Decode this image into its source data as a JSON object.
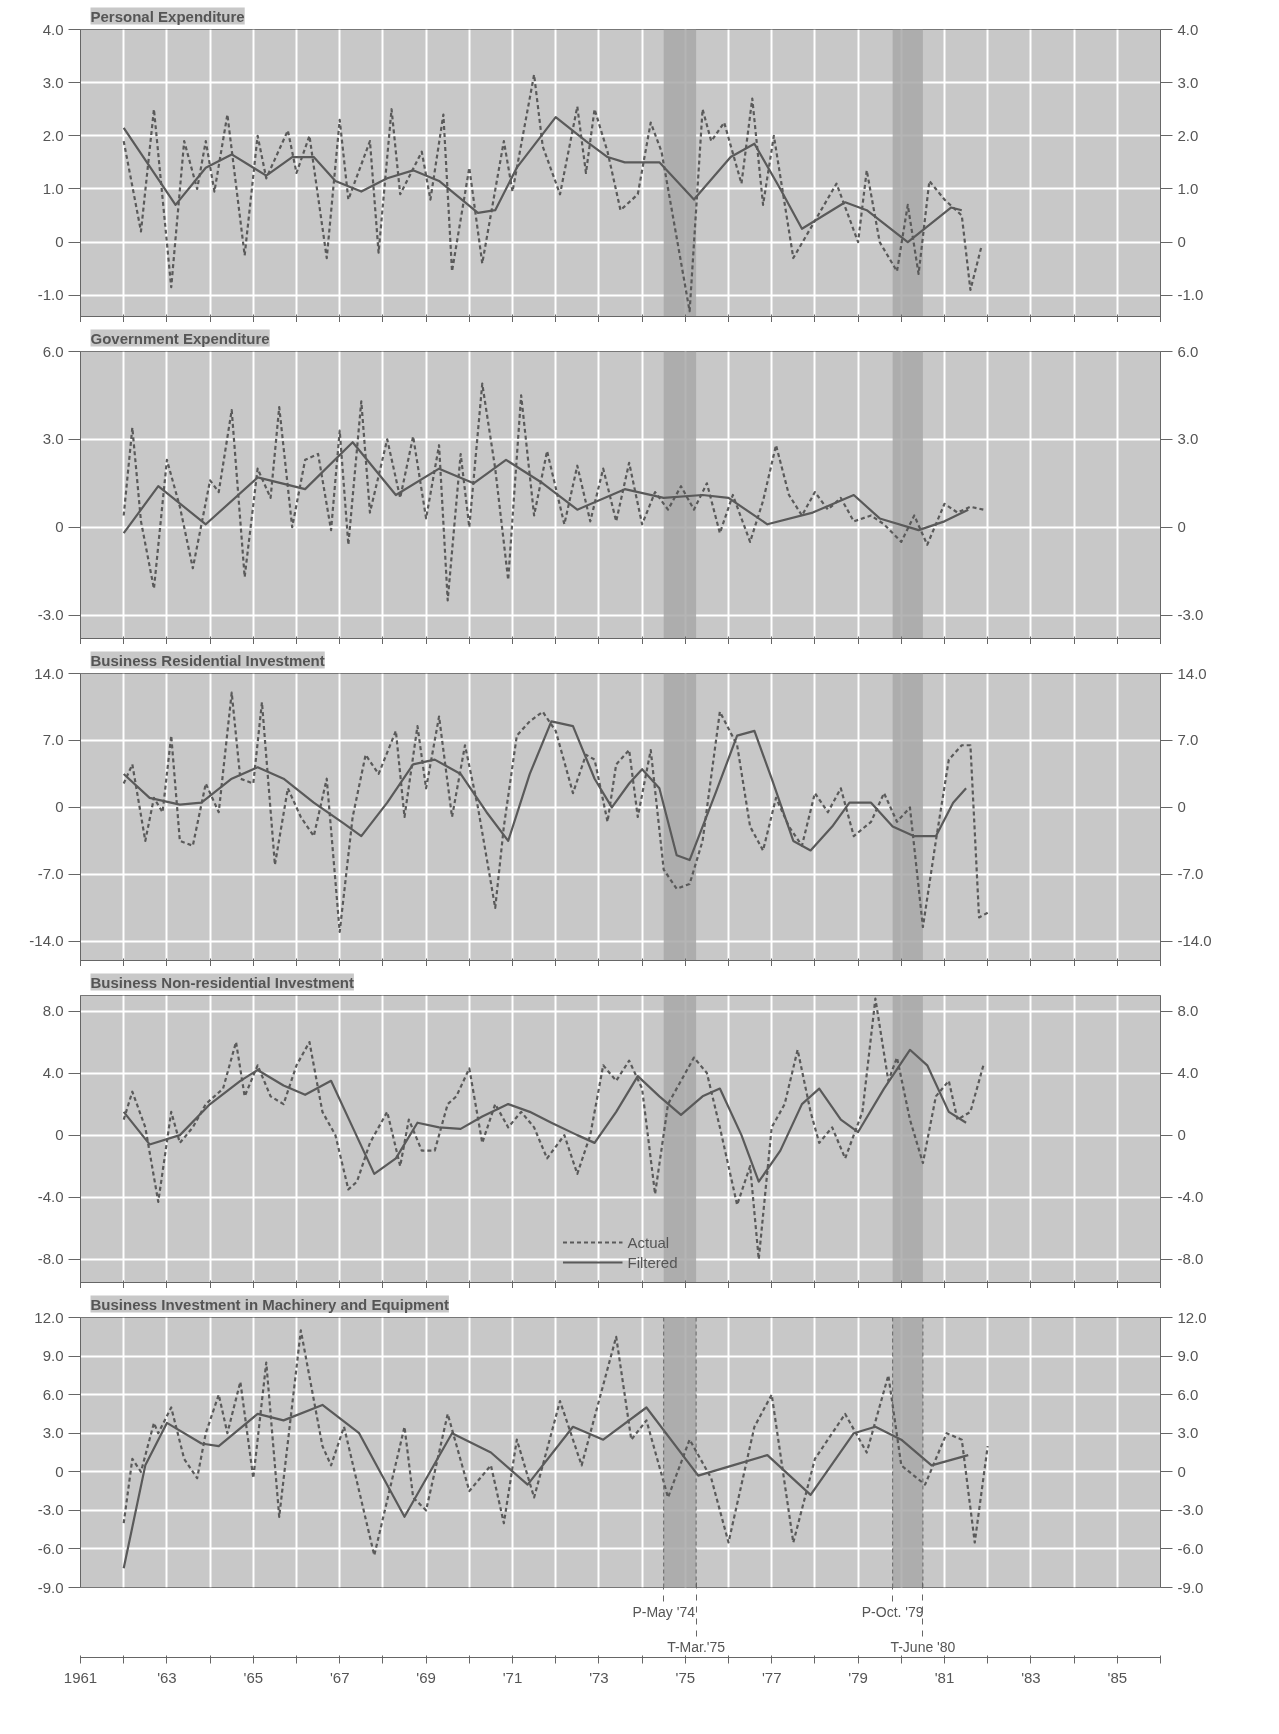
{
  "chart_data": [
    {
      "type": "line",
      "title": "Personal Expenditure",
      "tick_labels": "y",
      "grid": true,
      "xlim": [
        1961,
        1986
      ],
      "xticks": [
        {
          "value": 1961,
          "label": null
        },
        {
          "value": 1962,
          "label": null
        },
        {
          "value": 1963,
          "label": null
        },
        {
          "value": 1964,
          "label": null
        },
        {
          "value": 1965,
          "label": null
        },
        {
          "value": 1966,
          "label": null
        },
        {
          "value": 1967,
          "label": null
        },
        {
          "value": 1968,
          "label": null
        },
        {
          "value": 1969,
          "label": null
        },
        {
          "value": 1970,
          "label": null
        },
        {
          "value": 1971,
          "label": null
        },
        {
          "value": 1972,
          "label": null
        },
        {
          "value": 1973,
          "label": null
        },
        {
          "value": 1974,
          "label": null
        },
        {
          "value": 1975,
          "label": null
        },
        {
          "value": 1976,
          "label": null
        },
        {
          "value": 1977,
          "label": null
        },
        {
          "value": 1978,
          "label": null
        },
        {
          "value": 1979,
          "label": null
        },
        {
          "value": 1980,
          "label": null
        },
        {
          "value": 1981,
          "label": null
        },
        {
          "value": 1982,
          "label": null
        },
        {
          "value": 1983,
          "label": null
        },
        {
          "value": 1984,
          "label": null
        },
        {
          "value": 1985,
          "label": null
        },
        {
          "value": 1986,
          "label": null
        }
      ],
      "ylim": [
        -1.4,
        4.0
      ],
      "yticks": [
        {
          "value": -1,
          "label": "-1.0"
        },
        0,
        {
          "value": 1,
          "label": "1.0"
        },
        {
          "value": 2,
          "label": "2.0"
        },
        {
          "value": 3,
          "label": "3.0"
        },
        {
          "value": 4,
          "label": "4.0"
        }
      ],
      "y2lim": [
        -1.4,
        4.0
      ],
      "y2ticks": [
        {
          "value": -1,
          "label": "-1.0"
        },
        0,
        {
          "value": 1,
          "label": "1.0"
        },
        {
          "value": 2,
          "label": "2.0"
        },
        {
          "value": 3,
          "label": "3.0"
        },
        {
          "value": 4,
          "label": "4.0"
        }
      ],
      "bands": [
        {
          "axis": "x",
          "from": 1974.5,
          "to": 1975.25,
          "color": "#a8a8a8"
        },
        {
          "axis": "x",
          "from": 1979.8,
          "to": 1980.5,
          "color": "#a8a8a8"
        }
      ],
      "series": [
        {
          "color": "#5a5a5a",
          "line_style": "dashed",
          "x": [
            1962.0,
            1962.4,
            1962.7,
            1963.1,
            1963.4,
            1963.7,
            1963.9,
            1964.1,
            1964.4,
            1964.8,
            1965.1,
            1965.3,
            1965.8,
            1966.0,
            1966.3,
            1966.7,
            1967.0,
            1967.2,
            1967.7,
            1967.9,
            1968.2,
            1968.4,
            1968.9,
            1969.1,
            1969.4,
            1969.6,
            1970.0,
            1970.3,
            1970.8,
            1971.0,
            1971.5,
            1971.7,
            1972.1,
            1972.5,
            1972.7,
            1972.9,
            1973.2,
            1973.5,
            1973.9,
            1974.2,
            1974.45,
            1975.1,
            1975.4,
            1975.6,
            1975.9,
            1976.3,
            1976.55,
            1976.8,
            1977.05,
            1977.5,
            1978.5,
            1979.0,
            1979.2,
            1979.5,
            1979.9,
            1980.15,
            1980.4,
            1980.65,
            1981.0,
            1981.4,
            1981.6,
            1981.85
          ],
          "values": [
            1.9,
            0.2,
            2.5,
            -0.85,
            1.9,
            1.0,
            1.9,
            0.95,
            2.4,
            -0.25,
            2.0,
            1.2,
            2.1,
            1.3,
            2.0,
            -0.3,
            2.3,
            0.8,
            1.9,
            -0.2,
            2.5,
            0.9,
            1.7,
            0.8,
            2.4,
            -0.55,
            1.4,
            -0.4,
            1.9,
            0.95,
            3.15,
            1.8,
            0.9,
            2.55,
            1.3,
            2.5,
            1.7,
            0.6,
            0.9,
            2.25,
            1.7,
            -1.3,
            2.5,
            1.9,
            2.25,
            1.1,
            2.7,
            0.7,
            2.0,
            -0.3,
            1.1,
            0.0,
            1.35,
            0.0,
            -0.55,
            0.7,
            -0.6,
            1.15,
            0.8,
            0.5,
            -0.9,
            -0.1
          ]
        },
        {
          "color": "#5a5a5a",
          "line_style": "solid",
          "x": [
            1962.0,
            1963.2,
            1963.9,
            1964.5,
            1964.9,
            1965.3,
            1965.9,
            1966.4,
            1966.9,
            1967.5,
            1968.1,
            1968.7,
            1969.3,
            1970.2,
            1970.6,
            1971.1,
            1972.0,
            1972.7,
            1973.2,
            1973.6,
            1974.4,
            1975.2,
            1976.05,
            1976.6,
            1977.2,
            1977.7,
            1978.7,
            1979.2,
            1980.15,
            1981.15,
            1981.4
          ],
          "values": [
            2.15,
            0.7,
            1.4,
            1.65,
            1.45,
            1.25,
            1.6,
            1.6,
            1.15,
            0.95,
            1.2,
            1.35,
            1.15,
            0.55,
            0.6,
            1.4,
            2.35,
            1.9,
            1.6,
            1.5,
            1.5,
            0.8,
            1.6,
            1.85,
            1.0,
            0.25,
            0.75,
            0.6,
            0.0,
            0.65,
            0.6
          ]
        }
      ]
    },
    {
      "type": "line",
      "title": "Government Expenditure",
      "tick_labels": "y",
      "grid": true,
      "xlim": [
        1961,
        1986
      ],
      "xticks": [
        {
          "value": 1961,
          "label": null
        },
        {
          "value": 1962,
          "label": null
        },
        {
          "value": 1963,
          "label": null
        },
        {
          "value": 1964,
          "label": null
        },
        {
          "value": 1965,
          "label": null
        },
        {
          "value": 1966,
          "label": null
        },
        {
          "value": 1967,
          "label": null
        },
        {
          "value": 1968,
          "label": null
        },
        {
          "value": 1969,
          "label": null
        },
        {
          "value": 1970,
          "label": null
        },
        {
          "value": 1971,
          "label": null
        },
        {
          "value": 1972,
          "label": null
        },
        {
          "value": 1973,
          "label": null
        },
        {
          "value": 1974,
          "label": null
        },
        {
          "value": 1975,
          "label": null
        },
        {
          "value": 1976,
          "label": null
        },
        {
          "value": 1977,
          "label": null
        },
        {
          "value": 1978,
          "label": null
        },
        {
          "value": 1979,
          "label": null
        },
        {
          "value": 1980,
          "label": null
        },
        {
          "value": 1981,
          "label": null
        },
        {
          "value": 1982,
          "label": null
        },
        {
          "value": 1983,
          "label": null
        },
        {
          "value": 1984,
          "label": null
        },
        {
          "value": 1985,
          "label": null
        },
        {
          "value": 1986,
          "label": null
        }
      ],
      "ylim": [
        -3.8,
        6.0
      ],
      "yticks": [
        {
          "value": -3,
          "label": "-3.0"
        },
        0,
        {
          "value": 3,
          "label": "3.0"
        },
        {
          "value": 6,
          "label": "6.0"
        }
      ],
      "y2lim": [
        -3.8,
        6.0
      ],
      "y2ticks": [
        {
          "value": -3,
          "label": "-3.0"
        },
        0,
        {
          "value": 3,
          "label": "3.0"
        },
        {
          "value": 6,
          "label": "6.0"
        }
      ],
      "bands": [
        {
          "axis": "x",
          "from": 1974.5,
          "to": 1975.25,
          "color": "#a8a8a8"
        },
        {
          "axis": "x",
          "from": 1979.8,
          "to": 1980.5,
          "color": "#a8a8a8"
        }
      ],
      "series": [
        {
          "color": "#5a5a5a",
          "line_style": "dashed",
          "x": [
            1962.0,
            1962.2,
            1962.4,
            1962.7,
            1963.0,
            1963.3,
            1963.6,
            1964.0,
            1964.2,
            1964.5,
            1964.8,
            1965.1,
            1965.4,
            1965.6,
            1965.9,
            1966.2,
            1966.5,
            1966.8,
            1967.0,
            1967.2,
            1967.5,
            1967.7,
            1968.1,
            1968.4,
            1968.7,
            1969.0,
            1969.3,
            1969.5,
            1969.8,
            1970.0,
            1970.3,
            1970.6,
            1970.9,
            1971.2,
            1971.5,
            1971.8,
            1972.2,
            1972.5,
            1972.8,
            1973.1,
            1973.4,
            1973.7,
            1974.0,
            1974.3,
            1974.6,
            1974.9,
            1975.2,
            1975.5,
            1975.8,
            1976.1,
            1976.5,
            1976.8,
            1977.1,
            1977.4,
            1977.7,
            1978.0,
            1978.3,
            1978.6,
            1978.9,
            1979.3,
            1979.6,
            1980.0,
            1980.3,
            1980.6,
            1981.0,
            1981.3,
            1981.6,
            1981.9
          ],
          "values": [
            0.4,
            3.4,
            0.2,
            -2.1,
            2.3,
            0.7,
            -1.4,
            1.6,
            1.2,
            4.0,
            -1.7,
            2.0,
            1.0,
            4.1,
            0.0,
            2.3,
            2.5,
            -0.1,
            3.3,
            -0.6,
            4.3,
            0.5,
            3.0,
            1.0,
            3.1,
            0.3,
            2.8,
            -2.5,
            2.5,
            0.0,
            4.9,
            2.0,
            -1.8,
            4.5,
            0.4,
            2.6,
            0.1,
            2.1,
            0.2,
            2.0,
            0.2,
            2.2,
            0.1,
            1.2,
            0.6,
            1.4,
            0.6,
            1.5,
            -0.2,
            1.1,
            -0.5,
            0.9,
            2.8,
            1.1,
            0.4,
            1.2,
            0.6,
            1.0,
            0.2,
            0.4,
            0.1,
            -0.5,
            0.4,
            -0.6,
            0.8,
            0.5,
            0.7,
            0.6
          ]
        },
        {
          "color": "#5a5a5a",
          "line_style": "solid",
          "x": [
            1962.0,
            1962.8,
            1963.9,
            1965.1,
            1966.2,
            1967.3,
            1968.3,
            1969.3,
            1970.1,
            1970.85,
            1971.7,
            1972.5,
            1973.6,
            1974.5,
            1975.4,
            1976.0,
            1976.9,
            1977.95,
            1978.9,
            1979.5,
            1980.4,
            1981.0,
            1981.55
          ],
          "values": [
            -0.2,
            1.4,
            0.1,
            1.7,
            1.3,
            2.9,
            1.1,
            2.0,
            1.5,
            2.3,
            1.5,
            0.6,
            1.3,
            1.0,
            1.1,
            1.0,
            0.1,
            0.5,
            1.1,
            0.3,
            -0.1,
            0.2,
            0.6
          ]
        }
      ]
    },
    {
      "type": "line",
      "title": "Business Residential Investment",
      "tick_labels": "y",
      "grid": true,
      "xlim": [
        1961,
        1986
      ],
      "xticks": [
        {
          "value": 1961,
          "label": null
        },
        {
          "value": 1962,
          "label": null
        },
        {
          "value": 1963,
          "label": null
        },
        {
          "value": 1964,
          "label": null
        },
        {
          "value": 1965,
          "label": null
        },
        {
          "value": 1966,
          "label": null
        },
        {
          "value": 1967,
          "label": null
        },
        {
          "value": 1968,
          "label": null
        },
        {
          "value": 1969,
          "label": null
        },
        {
          "value": 1970,
          "label": null
        },
        {
          "value": 1971,
          "label": null
        },
        {
          "value": 1972,
          "label": null
        },
        {
          "value": 1973,
          "label": null
        },
        {
          "value": 1974,
          "label": null
        },
        {
          "value": 1975,
          "label": null
        },
        {
          "value": 1976,
          "label": null
        },
        {
          "value": 1977,
          "label": null
        },
        {
          "value": 1978,
          "label": null
        },
        {
          "value": 1979,
          "label": null
        },
        {
          "value": 1980,
          "label": null
        },
        {
          "value": 1981,
          "label": null
        },
        {
          "value": 1982,
          "label": null
        },
        {
          "value": 1983,
          "label": null
        },
        {
          "value": 1984,
          "label": null
        },
        {
          "value": 1985,
          "label": null
        },
        {
          "value": 1986,
          "label": null
        }
      ],
      "ylim": [
        -16,
        14
      ],
      "yticks": [
        {
          "value": -14,
          "label": "-14.0"
        },
        {
          "value": -7,
          "label": "-7.0"
        },
        0,
        {
          "value": 7,
          "label": "7.0"
        },
        {
          "value": 14,
          "label": "14.0"
        }
      ],
      "y2lim": [
        -16,
        14
      ],
      "y2ticks": [
        {
          "value": -14,
          "label": "-14.0"
        },
        {
          "value": -7,
          "label": "-7.0"
        },
        0,
        {
          "value": 7,
          "label": "7.0"
        },
        {
          "value": 14,
          "label": "14.0"
        }
      ],
      "bands": [
        {
          "axis": "x",
          "from": 1974.5,
          "to": 1975.25,
          "color": "#a8a8a8"
        },
        {
          "axis": "x",
          "from": 1979.8,
          "to": 1980.5,
          "color": "#a8a8a8"
        }
      ],
      "series": [
        {
          "color": "#5a5a5a",
          "line_style": "dashed",
          "x": [
            1962.0,
            1962.2,
            1962.5,
            1962.7,
            1962.9,
            1963.1,
            1963.3,
            1963.6,
            1963.9,
            1964.2,
            1964.5,
            1964.7,
            1965.0,
            1965.2,
            1965.5,
            1965.8,
            1966.1,
            1966.4,
            1966.7,
            1967.0,
            1967.3,
            1967.6,
            1967.9,
            1968.3,
            1968.5,
            1968.8,
            1969.0,
            1969.3,
            1969.6,
            1969.9,
            1970.2,
            1970.6,
            1970.8,
            1971.1,
            1971.4,
            1971.7,
            1972.0,
            1972.4,
            1972.7,
            1972.9,
            1973.2,
            1973.4,
            1973.7,
            1973.9,
            1974.2,
            1974.5,
            1974.8,
            1975.1,
            1975.4,
            1975.8,
            1976.2,
            1976.5,
            1976.8,
            1977.1,
            1977.4,
            1977.7,
            1978.0,
            1978.3,
            1978.6,
            1978.9,
            1979.3,
            1979.6,
            1979.9,
            1980.2,
            1980.5,
            1980.8,
            1981.1,
            1981.4,
            1981.6,
            1981.8,
            1982.0
          ],
          "values": [
            2.5,
            4.5,
            -3.5,
            1.0,
            -0.5,
            7.5,
            -3.5,
            -4.0,
            2.5,
            -0.5,
            12.0,
            3.0,
            2.5,
            11.0,
            -6.0,
            2.0,
            -1.0,
            -3.0,
            3.0,
            -13.0,
            -1.0,
            5.5,
            3.5,
            8.0,
            -1.0,
            8.5,
            2.0,
            9.5,
            -1.0,
            6.5,
            0.0,
            -10.5,
            -2.0,
            7.5,
            9.0,
            10.0,
            8.0,
            1.5,
            5.5,
            5.0,
            -1.5,
            4.5,
            6.0,
            -1.0,
            6.0,
            -6.5,
            -8.5,
            -8.0,
            -3.5,
            10.0,
            6.5,
            -2.0,
            -4.5,
            1.0,
            -2.0,
            -4.0,
            1.5,
            -0.5,
            2.0,
            -3.0,
            -1.5,
            1.5,
            -1.5,
            0.0,
            -12.5,
            -3.5,
            5.0,
            6.5,
            6.5,
            -11.5,
            -11.0
          ]
        },
        {
          "color": "#5a5a5a",
          "line_style": "solid",
          "x": [
            1962.0,
            1962.6,
            1963.3,
            1963.8,
            1964.5,
            1965.1,
            1965.7,
            1966.4,
            1967.1,
            1967.5,
            1968.1,
            1968.7,
            1969.2,
            1969.8,
            1970.4,
            1970.9,
            1971.4,
            1971.9,
            1972.4,
            1972.9,
            1973.3,
            1973.7,
            1974.0,
            1974.4,
            1974.8,
            1975.1,
            1975.7,
            1976.2,
            1976.6,
            1977.0,
            1977.5,
            1977.9,
            1978.4,
            1978.8,
            1979.3,
            1979.8,
            1980.3,
            1980.8,
            1981.2,
            1981.5
          ],
          "values": [
            3.5,
            1.0,
            0.3,
            0.5,
            3.0,
            4.2,
            3.0,
            0.5,
            -1.7,
            -3.0,
            0.5,
            4.5,
            5.0,
            3.5,
            -0.5,
            -3.5,
            3.5,
            9.0,
            8.5,
            3.0,
            0.0,
            2.5,
            4.0,
            2.0,
            -5.0,
            -5.5,
            1.5,
            7.5,
            8.0,
            3.0,
            -3.5,
            -4.5,
            -2.0,
            0.5,
            0.5,
            -2.0,
            -3.0,
            -3.0,
            0.5,
            2.0
          ]
        }
      ]
    },
    {
      "type": "line",
      "title": "Business Non-residential Investment",
      "tick_labels": "y",
      "grid": true,
      "legend": "bottom",
      "xlim": [
        1961,
        1986
      ],
      "xticks": [
        {
          "value": 1961,
          "label": null
        },
        {
          "value": 1962,
          "label": null
        },
        {
          "value": 1963,
          "label": null
        },
        {
          "value": 1964,
          "label": null
        },
        {
          "value": 1965,
          "label": null
        },
        {
          "value": 1966,
          "label": null
        },
        {
          "value": 1967,
          "label": null
        },
        {
          "value": 1968,
          "label": null
        },
        {
          "value": 1969,
          "label": null
        },
        {
          "value": 1970,
          "label": null
        },
        {
          "value": 1971,
          "label": null
        },
        {
          "value": 1972,
          "label": null
        },
        {
          "value": 1973,
          "label": null
        },
        {
          "value": 1974,
          "label": null
        },
        {
          "value": 1975,
          "label": null
        },
        {
          "value": 1976,
          "label": null
        },
        {
          "value": 1977,
          "label": null
        },
        {
          "value": 1978,
          "label": null
        },
        {
          "value": 1979,
          "label": null
        },
        {
          "value": 1980,
          "label": null
        },
        {
          "value": 1981,
          "label": null
        },
        {
          "value": 1982,
          "label": null
        },
        {
          "value": 1983,
          "label": null
        },
        {
          "value": 1984,
          "label": null
        },
        {
          "value": 1985,
          "label": null
        },
        {
          "value": 1986,
          "label": null
        }
      ],
      "ylim": [
        -9.5,
        9.0
      ],
      "yticks": [
        {
          "value": -8,
          "label": "-8.0"
        },
        {
          "value": -4,
          "label": "-4.0"
        },
        0,
        {
          "value": 4,
          "label": "4.0"
        },
        {
          "value": 8,
          "label": "8.0"
        }
      ],
      "y2lim": [
        -9.5,
        9.0
      ],
      "y2ticks": [
        {
          "value": -8,
          "label": "-8.0"
        },
        {
          "value": -4,
          "label": "-4.0"
        },
        0,
        {
          "value": 4,
          "label": "4.0"
        },
        {
          "value": 8,
          "label": "8.0"
        }
      ],
      "bands": [
        {
          "axis": "x",
          "from": 1974.5,
          "to": 1975.25,
          "color": "#a8a8a8"
        },
        {
          "axis": "x",
          "from": 1979.8,
          "to": 1980.5,
          "color": "#a8a8a8"
        }
      ],
      "series": [
        {
          "name": "Actual",
          "color": "#5a5a5a",
          "line_style": "dashed",
          "x": [
            1962.0,
            1962.2,
            1962.5,
            1962.8,
            1963.1,
            1963.3,
            1963.6,
            1963.9,
            1964.3,
            1964.6,
            1964.8,
            1965.1,
            1965.4,
            1965.7,
            1966.0,
            1966.3,
            1966.6,
            1966.9,
            1967.2,
            1967.4,
            1967.7,
            1968.1,
            1968.4,
            1968.6,
            1968.9,
            1969.2,
            1969.5,
            1969.7,
            1970.0,
            1970.3,
            1970.6,
            1970.9,
            1971.2,
            1971.5,
            1971.8,
            1972.2,
            1972.5,
            1972.8,
            1973.1,
            1973.4,
            1973.7,
            1974.0,
            1974.3,
            1974.6,
            1974.9,
            1975.2,
            1975.5,
            1975.8,
            1976.2,
            1976.5,
            1976.7,
            1977.0,
            1977.3,
            1977.6,
            1977.9,
            1978.1,
            1978.4,
            1978.7,
            1979.1,
            1979.4,
            1979.7,
            1979.9,
            1980.2,
            1980.5,
            1980.8,
            1981.1,
            1981.3,
            1981.6,
            1981.9
          ],
          "values": [
            1.0,
            2.8,
            0.5,
            -4.3,
            1.5,
            -0.5,
            0.5,
            2.0,
            3.0,
            6.0,
            2.5,
            4.5,
            2.5,
            2.0,
            4.5,
            6.0,
            1.5,
            0.0,
            -3.5,
            -3.0,
            -0.5,
            1.5,
            -2.0,
            1.0,
            -1.0,
            -1.0,
            2.0,
            2.5,
            4.3,
            -0.5,
            2.0,
            0.5,
            1.5,
            0.5,
            -1.5,
            0.0,
            -2.5,
            0.0,
            4.5,
            3.5,
            4.8,
            3.0,
            -3.8,
            2.0,
            3.5,
            5.0,
            4.0,
            0.5,
            -4.5,
            -2.0,
            -8.0,
            0.5,
            2.0,
            5.5,
            1.5,
            -0.5,
            0.5,
            -1.5,
            1.5,
            8.8,
            3.5,
            5.0,
            1.0,
            -1.8,
            2.5,
            3.5,
            1.0,
            1.5,
            4.5
          ]
        },
        {
          "name": "Filtered",
          "color": "#5a5a5a",
          "line_style": "solid",
          "x": [
            1962.0,
            1962.6,
            1963.3,
            1964.0,
            1964.7,
            1965.1,
            1965.7,
            1966.2,
            1966.8,
            1967.3,
            1967.8,
            1968.3,
            1968.8,
            1969.3,
            1969.8,
            1970.3,
            1970.9,
            1971.4,
            1971.9,
            1972.5,
            1972.9,
            1973.4,
            1973.9,
            1974.4,
            1974.9,
            1975.4,
            1975.8,
            1976.3,
            1976.7,
            1977.2,
            1977.7,
            1978.1,
            1978.6,
            1979.0,
            1979.6,
            1980.2,
            1980.6,
            1981.1,
            1981.5
          ],
          "values": [
            1.5,
            -0.6,
            0.0,
            2.0,
            3.5,
            4.2,
            3.2,
            2.6,
            3.5,
            0.5,
            -2.5,
            -1.5,
            0.8,
            0.5,
            0.4,
            1.2,
            2.0,
            1.5,
            0.8,
            0.0,
            -0.5,
            1.5,
            3.8,
            2.5,
            1.3,
            2.5,
            3.0,
            0.0,
            -3.0,
            -1.0,
            2.0,
            3.0,
            1.0,
            0.2,
            3.0,
            5.5,
            4.5,
            1.5,
            0.8
          ]
        }
      ]
    },
    {
      "type": "line",
      "title": "Business Investment in Machinery and Equipment",
      "grid": true,
      "xlim": [
        1961,
        1986
      ],
      "xticks": [
        1961,
        {
          "value": 1962,
          "label": null
        },
        {
          "value": 1963,
          "label": "'63"
        },
        {
          "value": 1964,
          "label": null
        },
        {
          "value": 1965,
          "label": "'65"
        },
        {
          "value": 1966,
          "label": null
        },
        {
          "value": 1967,
          "label": "'67"
        },
        {
          "value": 1968,
          "label": null
        },
        {
          "value": 1969,
          "label": "'69"
        },
        {
          "value": 1970,
          "label": null
        },
        {
          "value": 1971,
          "label": "'71"
        },
        {
          "value": 1972,
          "label": null
        },
        {
          "value": 1973,
          "label": "'73"
        },
        {
          "value": 1974,
          "label": null
        },
        {
          "value": 1975,
          "label": "'75"
        },
        {
          "value": 1976,
          "label": null
        },
        {
          "value": 1977,
          "label": "'77"
        },
        {
          "value": 1978,
          "label": null
        },
        {
          "value": 1979,
          "label": "'79"
        },
        {
          "value": 1980,
          "label": null
        },
        {
          "value": 1981,
          "label": "'81"
        },
        {
          "value": 1982,
          "label": null
        },
        {
          "value": 1983,
          "label": "'83"
        },
        {
          "value": 1984,
          "label": null
        },
        {
          "value": 1985,
          "label": "'85"
        },
        {
          "value": 1986,
          "label": null
        }
      ],
      "ylim": [
        -9.0,
        12.0
      ],
      "yticks": [
        {
          "value": -9,
          "label": "-9.0"
        },
        {
          "value": -6,
          "label": "-6.0"
        },
        {
          "value": -3,
          "label": "-3.0"
        },
        0,
        {
          "value": 3,
          "label": "3.0"
        },
        {
          "value": 6,
          "label": "6.0"
        },
        {
          "value": 9,
          "label": "9.0"
        },
        {
          "value": 12,
          "label": "12.0"
        }
      ],
      "y2lim": [
        -9.0,
        12.0
      ],
      "y2ticks": [
        {
          "value": -9,
          "label": "-9.0"
        },
        {
          "value": -6,
          "label": "-6.0"
        },
        {
          "value": -3,
          "label": "-3.0"
        },
        0,
        {
          "value": 3,
          "label": "3.0"
        },
        {
          "value": 6,
          "label": "6.0"
        },
        {
          "value": 9,
          "label": "9.0"
        },
        {
          "value": 12,
          "label": "12.0"
        }
      ],
      "bands": [
        {
          "axis": "x",
          "from": 1974.5,
          "to": 1975.25,
          "color": "#a8a8a8"
        },
        {
          "axis": "x",
          "from": 1979.8,
          "to": 1980.5,
          "color": "#a8a8a8"
        }
      ],
      "ref_lines": [
        {
          "axis": "x",
          "value": 1974.5,
          "label": "P-May '74",
          "line_style": "dashed"
        },
        {
          "axis": "x",
          "value": 1975.25,
          "label": "T-Mar.'75",
          "line_style": "dashed"
        },
        {
          "axis": "x",
          "value": 1979.8,
          "label": "P-Oct. '79",
          "line_style": "dashed"
        },
        {
          "axis": "x",
          "value": 1980.5,
          "label": "T-June '80",
          "line_style": "dashed"
        }
      ],
      "series": [
        {
          "color": "#5a5a5a",
          "line_style": "dashed",
          "x": [
            1962.0,
            1962.2,
            1962.4,
            1962.7,
            1962.8,
            1963.1,
            1963.4,
            1963.7,
            1963.9,
            1964.2,
            1964.4,
            1964.7,
            1965.0,
            1965.3,
            1965.6,
            1966.1,
            1966.6,
            1966.8,
            1967.1,
            1967.8,
            1968.5,
            1968.7,
            1969.0,
            1969.5,
            1970.0,
            1970.5,
            1970.8,
            1971.1,
            1971.5,
            1972.1,
            1972.6,
            1973.4,
            1973.75,
            1974.1,
            1974.6,
            1975.1,
            1975.6,
            1976.0,
            1976.6,
            1977.0,
            1977.5,
            1978.0,
            1978.7,
            1979.2,
            1979.7,
            1980.0,
            1980.55,
            1981.05,
            1981.4,
            1981.7,
            1982.0
          ],
          "values": [
            -4.0,
            1.0,
            0.0,
            3.8,
            3.0,
            5.0,
            1.0,
            -0.5,
            3.0,
            6.0,
            3.0,
            7.0,
            -0.5,
            8.5,
            -3.5,
            11.0,
            2.0,
            0.5,
            3.5,
            -6.5,
            3.5,
            -2.0,
            -3.0,
            4.5,
            -1.5,
            0.5,
            -4.0,
            2.5,
            -2.0,
            5.5,
            0.5,
            10.5,
            2.5,
            4.0,
            -2.0,
            2.5,
            -0.5,
            -5.5,
            3.5,
            6.0,
            -5.5,
            1.0,
            4.5,
            1.5,
            7.5,
            0.5,
            -1.0,
            3.0,
            2.5,
            -5.5,
            2.0
          ]
        },
        {
          "color": "#5a5a5a",
          "line_style": "solid",
          "x": [
            1962.0,
            1962.5,
            1963.0,
            1963.8,
            1964.2,
            1965.1,
            1965.7,
            1966.6,
            1967.45,
            1968.5,
            1969.6,
            1970.5,
            1971.35,
            1972.4,
            1973.1,
            1974.1,
            1975.3,
            1976.1,
            1976.9,
            1977.9,
            1978.9,
            1979.4,
            1980.0,
            1980.7,
            1981.55
          ],
          "values": [
            -7.5,
            0.5,
            3.8,
            2.2,
            2.0,
            4.5,
            4.0,
            5.2,
            3.0,
            -3.5,
            3.0,
            1.5,
            -1.0,
            3.5,
            2.5,
            5.0,
            -0.3,
            0.5,
            1.3,
            -1.8,
            3.0,
            3.5,
            2.5,
            0.5,
            1.3
          ]
        }
      ]
    }
  ]
}
